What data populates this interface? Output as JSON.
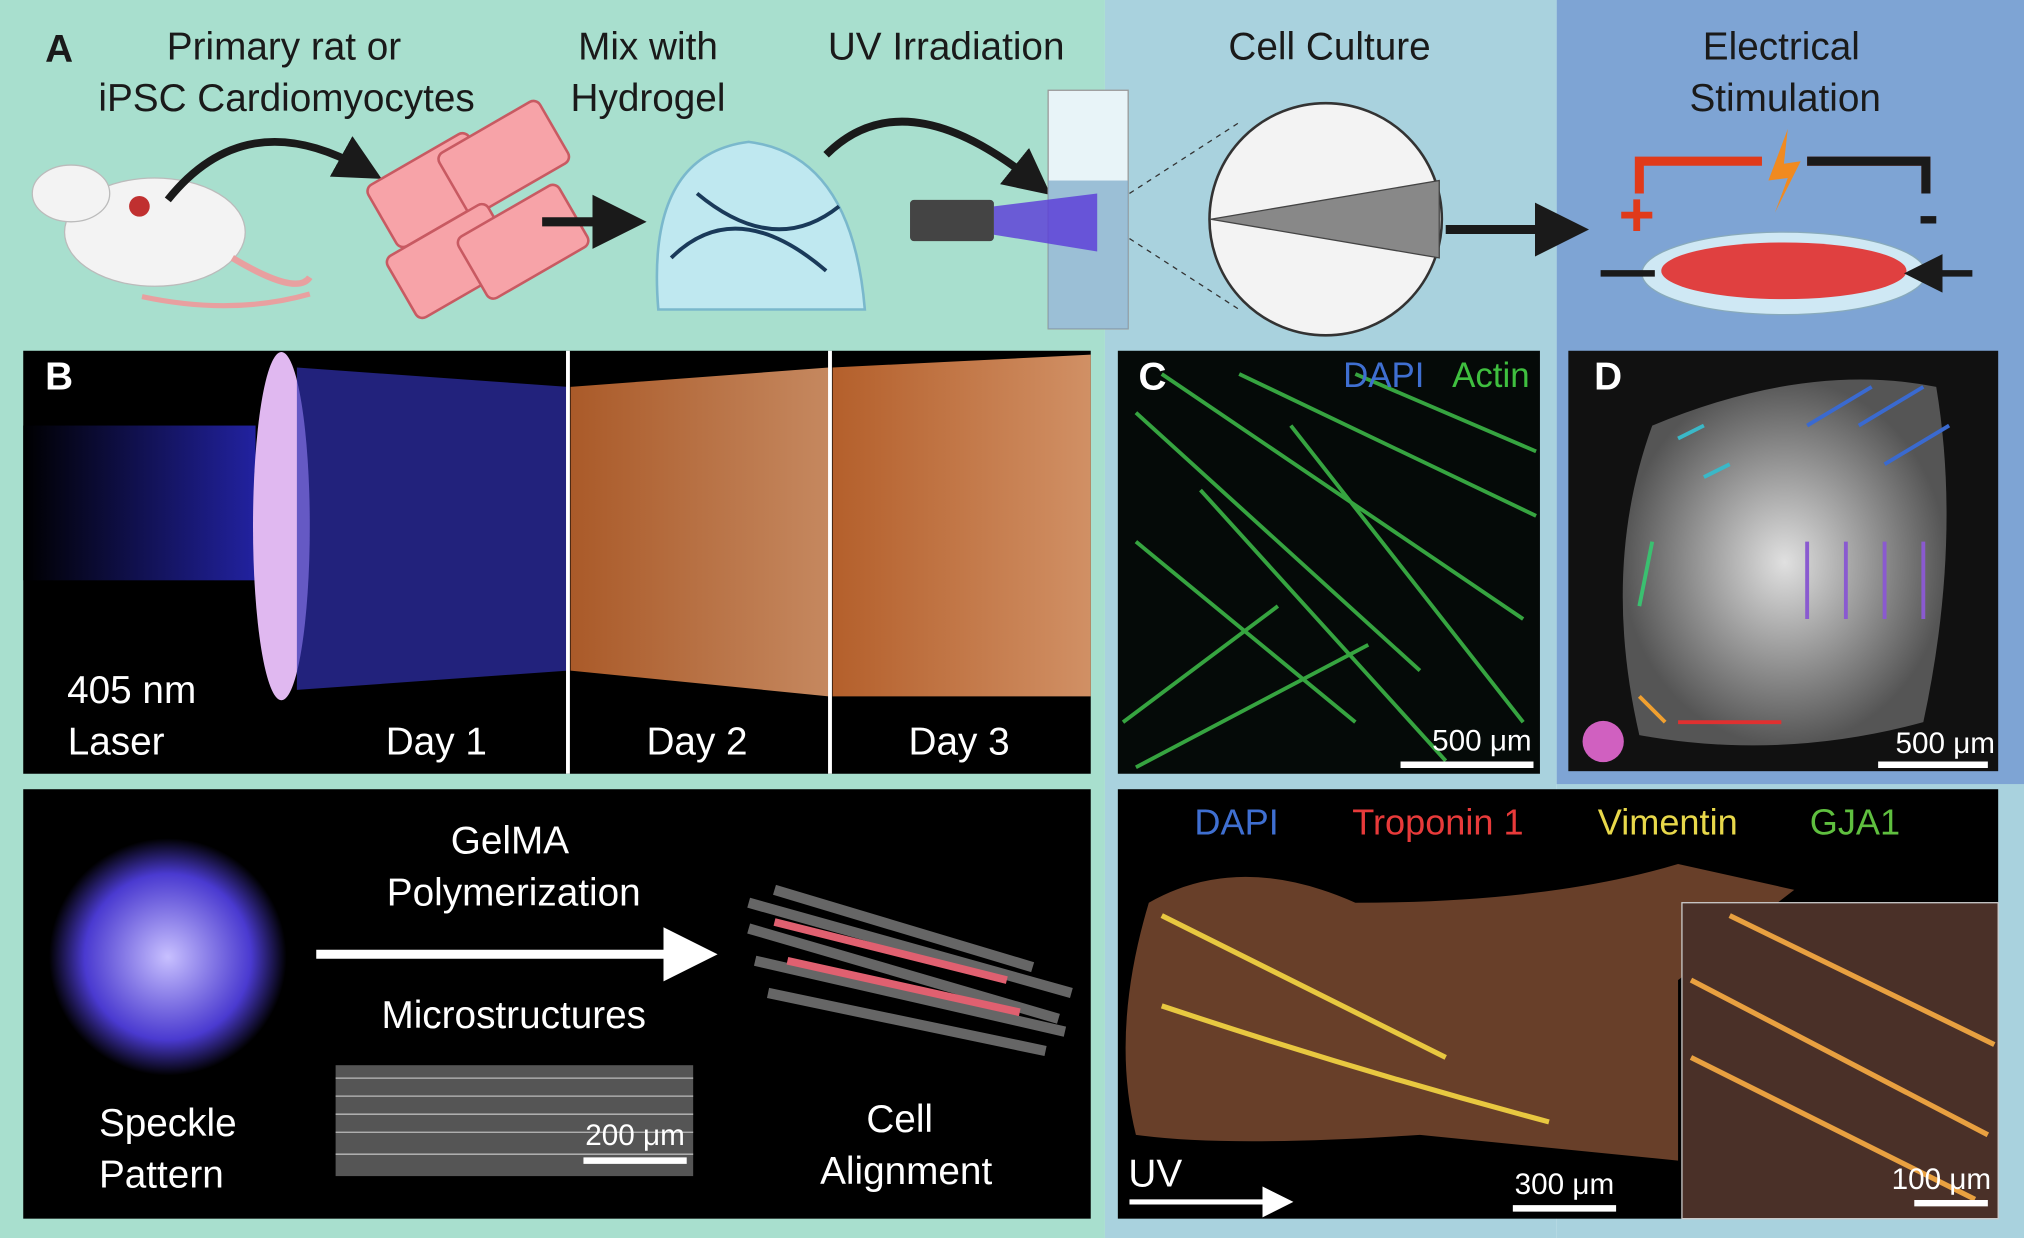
{
  "panel_a": {
    "label": "A",
    "steps": [
      {
        "lines": [
          "Primary rat or",
          "iPSC Cardiomyocytes"
        ]
      },
      {
        "lines": [
          "Mix with",
          "Hydrogel"
        ]
      },
      {
        "lines": [
          "UV Irradiation"
        ]
      },
      {
        "lines": [
          "Cell Culture"
        ]
      },
      {
        "lines": [
          "Electrical",
          "Stimulation"
        ]
      }
    ],
    "positive": "+",
    "negative": "-"
  },
  "panel_b": {
    "label": "B",
    "laser": [
      "405 nm",
      "Laser"
    ],
    "days": [
      "Day 1",
      "Day 2",
      "Day 3"
    ]
  },
  "panel_process": {
    "arrow_top": [
      "GelMA",
      "Polymerization"
    ],
    "arrow_bottom": "Microstructures",
    "left": [
      "Speckle",
      "Pattern"
    ],
    "right": [
      "Cell",
      "Alignment"
    ],
    "scale_bar": "200 μm"
  },
  "panel_c": {
    "label": "C",
    "stains": [
      "DAPI",
      "Actin"
    ],
    "scale_bar": "500 μm"
  },
  "panel_d": {
    "label": "D",
    "scale_bar": "500 μm"
  },
  "panel_stain": {
    "stains": [
      "DAPI",
      "Troponin 1",
      "Vimentin",
      "GJA1"
    ],
    "direction": "UV",
    "scale_bar": "300 μm",
    "inset_scale_bar": "100 μm"
  }
}
